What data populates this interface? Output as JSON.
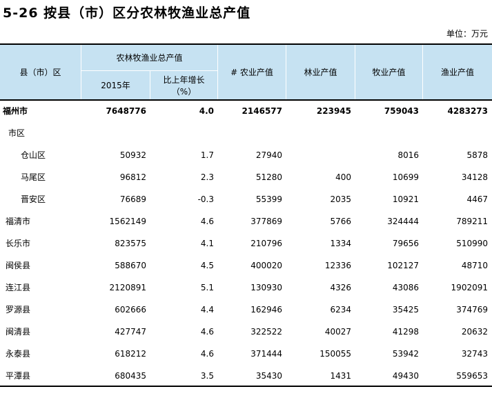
{
  "title": "5-26 按县（市）区分农林牧渔业总产值",
  "unit": "单位：万元",
  "header": {
    "region": "县（市）区",
    "group": "农林牧渔业总产值",
    "year": "2015年",
    "growth": [
      "比上年增长",
      "（%）"
    ],
    "columns": [
      "# 农业产值",
      "林业产值",
      "牧业产值",
      "渔业产值"
    ]
  },
  "table": {
    "rows": [
      [
        "福州市",
        "7648776",
        "4.0",
        "2146577",
        "223945",
        "759043",
        "4283273"
      ],
      [
        "市区",
        null,
        null,
        null,
        null,
        null,
        null
      ],
      [
        "仓山区",
        "50932",
        "1.7",
        "27940",
        null,
        "8016",
        "5878"
      ],
      [
        "马尾区",
        "96812",
        "2.3",
        "51280",
        "400",
        "10699",
        "34128"
      ],
      [
        "晋安区",
        "76689",
        "-0.3",
        "55399",
        "2035",
        "10921",
        "4467"
      ],
      [
        "福清市",
        "1562149",
        "4.6",
        "377869",
        "5766",
        "324444",
        "789211"
      ],
      [
        "长乐市",
        "823575",
        "4.1",
        "210796",
        "1334",
        "79656",
        "510990"
      ],
      [
        "闽侯县",
        "588670",
        "4.5",
        "400020",
        "12336",
        "102127",
        "48710"
      ],
      [
        "连江县",
        "2120891",
        "5.1",
        "130930",
        "4326",
        "43086",
        "1902091"
      ],
      [
        "罗源县",
        "602666",
        "4.4",
        "162946",
        "6234",
        "35425",
        "374769"
      ],
      [
        "闽清县",
        "427747",
        "4.6",
        "322522",
        "40027",
        "41298",
        "20632"
      ],
      [
        "永泰县",
        "618212",
        "4.6",
        "371444",
        "150055",
        "53942",
        "32743"
      ],
      [
        "平潭县",
        "680435",
        "3.5",
        "35430",
        "1431",
        "49430",
        "559653"
      ]
    ]
  }
}
